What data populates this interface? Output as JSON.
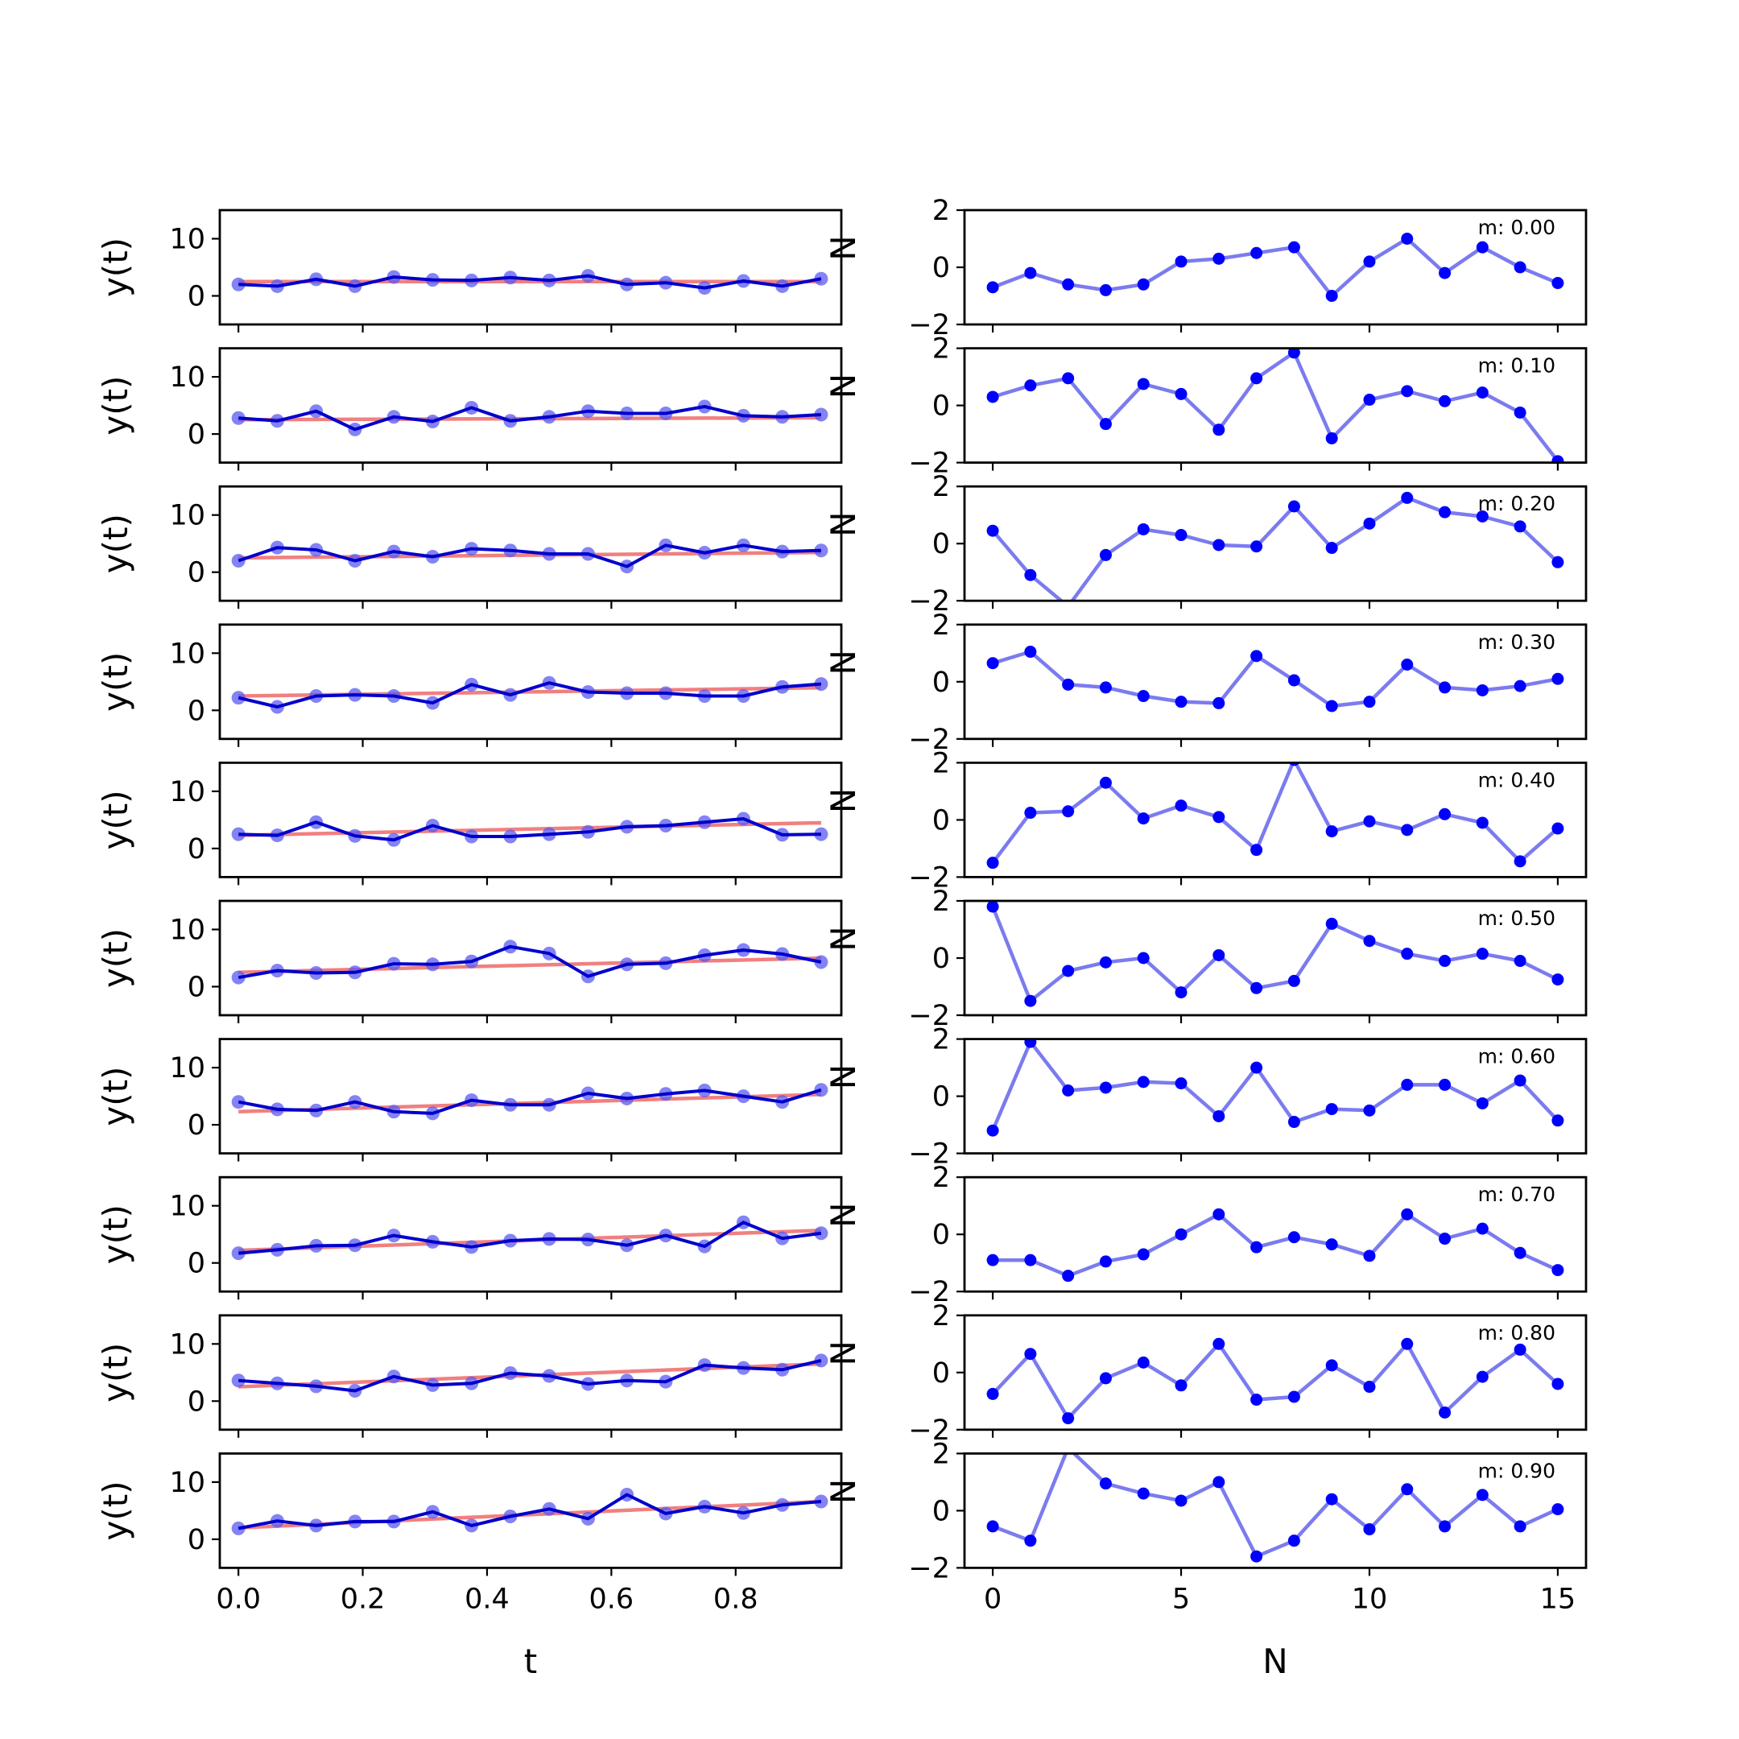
{
  "chart_data": {
    "type": "line",
    "layout": "10 rows x 2 columns of small multiples",
    "left_panels": {
      "xlabel": "t",
      "ylabel": "y(t)",
      "xlim": [
        -0.03,
        0.97
      ],
      "ylim": [
        -5,
        15
      ],
      "xticks": [
        0.0,
        0.2,
        0.4,
        0.6,
        0.8
      ],
      "xtick_labels": [
        "0.0",
        "0.2",
        "0.4",
        "0.6",
        "0.8"
      ],
      "yticks": [
        0,
        10
      ],
      "ytick_labels": [
        "0",
        "10"
      ],
      "x": [
        0.0,
        0.0625,
        0.125,
        0.1875,
        0.25,
        0.3125,
        0.375,
        0.4375,
        0.5,
        0.5625,
        0.625,
        0.6875,
        0.75,
        0.8125,
        0.875,
        0.9375
      ],
      "data_color": "#0000cc",
      "marker_color": "#5a5af0",
      "fit_color": "#f08080"
    },
    "right_panels": {
      "xlabel": "N",
      "ylabel": "N",
      "xlim": [
        -0.75,
        15.75
      ],
      "ylim": [
        -2,
        2
      ],
      "xticks": [
        0,
        5,
        10,
        15
      ],
      "xtick_labels": [
        "0",
        "5",
        "10",
        "15"
      ],
      "yticks": [
        -2,
        0,
        2
      ],
      "ytick_labels": [
        "−2",
        "0",
        "2"
      ],
      "x": [
        0,
        1,
        2,
        3,
        4,
        5,
        6,
        7,
        8,
        9,
        10,
        11,
        12,
        13,
        14,
        15
      ],
      "line_color": "#7b7bf0",
      "marker_color": "#0000ff"
    },
    "rows": [
      {
        "m_label": "m: 0.00",
        "fit": [
          2.5,
          2.5
        ],
        "y": [
          2.0,
          1.7,
          2.9,
          1.7,
          3.3,
          2.8,
          2.7,
          3.2,
          2.7,
          3.5,
          2.0,
          2.3,
          1.4,
          2.6,
          1.7,
          3.0
        ],
        "resid": [
          -0.7,
          -0.2,
          -0.6,
          -0.8,
          -0.6,
          0.2,
          0.3,
          0.5,
          0.7,
          -1.0,
          0.2,
          1.0,
          -0.2,
          0.7,
          0.0,
          -0.55
        ]
      },
      {
        "m_label": "m: 0.10",
        "fit": [
          2.5,
          2.85
        ],
        "y": [
          2.8,
          2.3,
          4.0,
          0.8,
          3.0,
          2.2,
          4.6,
          2.3,
          3.0,
          4.0,
          3.6,
          3.6,
          4.8,
          3.2,
          3.0,
          3.4
        ],
        "resid": [
          0.3,
          0.7,
          0.95,
          -0.65,
          0.75,
          0.4,
          -0.85,
          0.95,
          1.85,
          -1.15,
          0.2,
          0.5,
          0.15,
          0.45,
          -0.25,
          -1.95
        ]
      },
      {
        "m_label": "m: 0.20",
        "fit": [
          2.5,
          3.45
        ],
        "y": [
          2.0,
          4.3,
          3.9,
          2.0,
          3.6,
          2.7,
          4.1,
          3.8,
          3.2,
          3.2,
          1.0,
          4.7,
          3.4,
          4.7,
          3.6,
          3.8
        ],
        "resid": [
          0.45,
          -1.1,
          -2.2,
          -0.4,
          0.5,
          0.3,
          -0.05,
          -0.1,
          1.3,
          -0.15,
          0.7,
          1.6,
          1.1,
          0.95,
          0.6,
          -0.65
        ]
      },
      {
        "m_label": "m: 0.30",
        "fit": [
          2.5,
          3.95
        ],
        "y": [
          2.2,
          0.6,
          2.5,
          2.7,
          2.5,
          1.3,
          4.5,
          2.7,
          4.8,
          3.2,
          3.0,
          3.0,
          2.5,
          2.5,
          4.1,
          4.6
        ],
        "resid": [
          0.65,
          1.05,
          -0.1,
          -0.2,
          -0.5,
          -0.7,
          -0.75,
          0.9,
          0.05,
          -0.85,
          -0.7,
          0.6,
          -0.2,
          -0.3,
          -0.15,
          0.1
        ]
      },
      {
        "m_label": "m: 0.40",
        "fit": [
          2.3,
          4.5
        ],
        "y": [
          2.5,
          2.3,
          4.6,
          2.2,
          1.5,
          4.0,
          2.1,
          2.1,
          2.5,
          2.9,
          3.8,
          4.0,
          4.6,
          5.2,
          2.4,
          2.5
        ],
        "resid": [
          -1.5,
          0.25,
          0.3,
          1.3,
          0.05,
          0.5,
          0.1,
          -1.05,
          2.1,
          -0.4,
          -0.05,
          -0.35,
          0.2,
          -0.1,
          -1.45,
          -0.3
        ]
      },
      {
        "m_label": "m: 0.50",
        "fit": [
          2.5,
          5.0
        ],
        "y": [
          1.6,
          2.8,
          2.4,
          2.5,
          4.0,
          3.9,
          4.4,
          7.0,
          5.8,
          1.8,
          3.9,
          4.1,
          5.5,
          6.4,
          5.7,
          4.3
        ],
        "resid": [
          1.8,
          -1.5,
          -0.45,
          -0.15,
          0.0,
          -1.2,
          0.1,
          -1.05,
          -0.8,
          1.2,
          0.6,
          0.15,
          -0.1,
          0.15,
          -0.1,
          -0.75
        ]
      },
      {
        "m_label": "m: 0.60",
        "fit": [
          2.3,
          5.3
        ],
        "y": [
          4.0,
          2.7,
          2.5,
          4.0,
          2.3,
          2.0,
          4.3,
          3.5,
          3.5,
          5.5,
          4.6,
          5.4,
          6.0,
          5.0,
          4.0,
          6.1
        ],
        "resid": [
          -1.2,
          1.9,
          0.2,
          0.3,
          0.5,
          0.45,
          -0.7,
          1.0,
          -0.9,
          -0.45,
          -0.5,
          0.4,
          0.4,
          -0.25,
          0.55,
          -0.85
        ]
      },
      {
        "m_label": "m: 0.70",
        "fit": [
          2.2,
          5.7
        ],
        "y": [
          1.7,
          2.3,
          3.0,
          3.1,
          4.8,
          3.7,
          2.8,
          3.9,
          4.2,
          4.1,
          3.1,
          4.8,
          2.9,
          7.1,
          4.3,
          5.2
        ],
        "resid": [
          -0.9,
          -0.9,
          -1.45,
          -0.95,
          -0.7,
          0.0,
          0.7,
          -0.45,
          -0.1,
          -0.35,
          -0.75,
          0.7,
          -0.15,
          0.2,
          -0.65,
          -1.25
        ]
      },
      {
        "m_label": "m: 0.80",
        "fit": [
          2.5,
          6.5
        ],
        "y": [
          3.6,
          3.1,
          2.6,
          1.8,
          4.3,
          2.8,
          3.1,
          4.9,
          4.4,
          3.0,
          3.6,
          3.4,
          6.3,
          5.8,
          5.5,
          7.1
        ],
        "resid": [
          -0.75,
          0.65,
          -1.6,
          -0.2,
          0.35,
          -0.45,
          1.0,
          -0.95,
          -0.85,
          0.25,
          -0.5,
          1.0,
          -1.4,
          -0.15,
          0.8,
          -0.4
        ]
      },
      {
        "m_label": "m: 0.90",
        "fit": [
          2.0,
          6.6
        ],
        "y": [
          1.9,
          3.2,
          2.4,
          3.1,
          3.1,
          4.8,
          2.4,
          4.0,
          5.3,
          3.6,
          7.8,
          4.5,
          5.7,
          4.6,
          6.0,
          6.6
        ],
        "resid": [
          -0.55,
          -1.05,
          2.2,
          0.95,
          0.6,
          0.35,
          1.0,
          -1.6,
          -1.05,
          0.4,
          -0.65,
          0.75,
          -0.55,
          0.55,
          -0.55,
          0.05
        ]
      }
    ]
  }
}
